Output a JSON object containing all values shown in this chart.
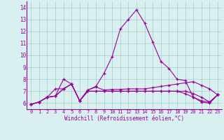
{
  "xlabel": "Windchill (Refroidissement éolien,°C)",
  "x": [
    0,
    1,
    2,
    3,
    4,
    5,
    6,
    7,
    8,
    9,
    10,
    11,
    12,
    13,
    14,
    15,
    16,
    17,
    18,
    19,
    20,
    21,
    22,
    23
  ],
  "line1": [
    5.9,
    6.1,
    6.5,
    6.6,
    7.2,
    7.6,
    6.2,
    7.1,
    7.4,
    8.5,
    9.9,
    12.2,
    13.0,
    13.8,
    12.7,
    11.1,
    9.5,
    8.9,
    8.0,
    7.9,
    6.5,
    6.1,
    6.0,
    6.7
  ],
  "line2": [
    5.9,
    6.1,
    6.5,
    6.6,
    8.0,
    7.6,
    6.2,
    7.1,
    7.35,
    7.1,
    7.15,
    7.15,
    7.2,
    7.2,
    7.2,
    7.3,
    7.4,
    7.5,
    7.6,
    7.7,
    7.8,
    7.5,
    7.2,
    6.7
  ],
  "line3": [
    5.9,
    6.1,
    6.5,
    7.2,
    7.2,
    7.6,
    6.2,
    7.0,
    7.0,
    7.0,
    7.0,
    7.0,
    7.0,
    7.0,
    7.0,
    7.0,
    7.0,
    7.0,
    7.0,
    7.0,
    6.8,
    6.5,
    6.1,
    6.7
  ],
  "line4": [
    5.9,
    6.1,
    6.5,
    6.6,
    7.2,
    7.6,
    6.2,
    7.0,
    7.0,
    7.0,
    7.0,
    7.0,
    7.0,
    7.0,
    7.0,
    7.0,
    7.0,
    7.0,
    7.0,
    6.8,
    6.5,
    6.2,
    6.1,
    6.7
  ],
  "line_color": "#990099",
  "bg_color": "#d8f0f0",
  "grid_color": "#aacccc",
  "ylim": [
    5.5,
    14.5
  ],
  "xlim": [
    -0.5,
    23.5
  ],
  "yticks": [
    6,
    7,
    8,
    9,
    10,
    11,
    12,
    13,
    14
  ],
  "xticks": [
    0,
    1,
    2,
    3,
    4,
    5,
    6,
    7,
    8,
    9,
    10,
    11,
    12,
    13,
    14,
    15,
    16,
    17,
    18,
    19,
    20,
    21,
    22,
    23
  ]
}
